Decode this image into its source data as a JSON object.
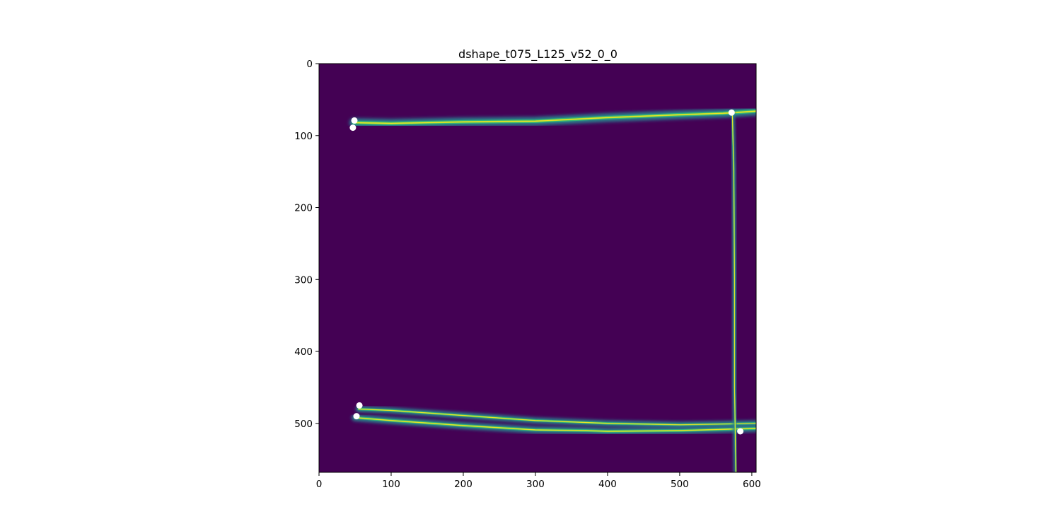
{
  "chart_data": {
    "type": "heatmap",
    "title": "dshape_t075_L125_v52_0_0",
    "xlabel": "",
    "ylabel": "",
    "xlim": [
      0,
      606
    ],
    "ylim": [
      568,
      0
    ],
    "y_inverted": true,
    "x_ticks": [
      0,
      100,
      200,
      300,
      400,
      500,
      600
    ],
    "y_ticks": [
      0,
      100,
      200,
      300,
      400,
      500
    ],
    "colormap": "viridis",
    "background_color": "#440154",
    "grid": false,
    "traces": [
      {
        "points": [
          [
            48,
            82
          ],
          [
            100,
            83
          ],
          [
            200,
            81
          ],
          [
            300,
            80
          ],
          [
            400,
            75
          ],
          [
            500,
            71
          ],
          [
            560,
            69
          ],
          [
            606,
            66
          ]
        ],
        "width": 9
      },
      {
        "points": [
          [
            55,
            480
          ],
          [
            100,
            482
          ],
          [
            200,
            489
          ],
          [
            300,
            496
          ],
          [
            400,
            500
          ],
          [
            500,
            502
          ],
          [
            560,
            501
          ],
          [
            606,
            500
          ]
        ],
        "width": 6
      },
      {
        "points": [
          [
            50,
            492
          ],
          [
            100,
            496
          ],
          [
            200,
            503
          ],
          [
            300,
            509
          ],
          [
            370,
            510
          ],
          [
            400,
            511
          ],
          [
            500,
            510
          ],
          [
            606,
            507
          ]
        ],
        "width": 7
      },
      {
        "points": [
          [
            573,
            68
          ],
          [
            575,
            150
          ],
          [
            576,
            300
          ],
          [
            576,
            450
          ],
          [
            578,
            568
          ]
        ],
        "width": 4
      }
    ],
    "markers": [
      {
        "x": 49,
        "y": 79
      },
      {
        "x": 47,
        "y": 89
      },
      {
        "x": 572,
        "y": 68
      },
      {
        "x": 56,
        "y": 475
      },
      {
        "x": 52,
        "y": 490
      },
      {
        "x": 584,
        "y": 511
      }
    ],
    "marker_color": "#ffffff"
  }
}
